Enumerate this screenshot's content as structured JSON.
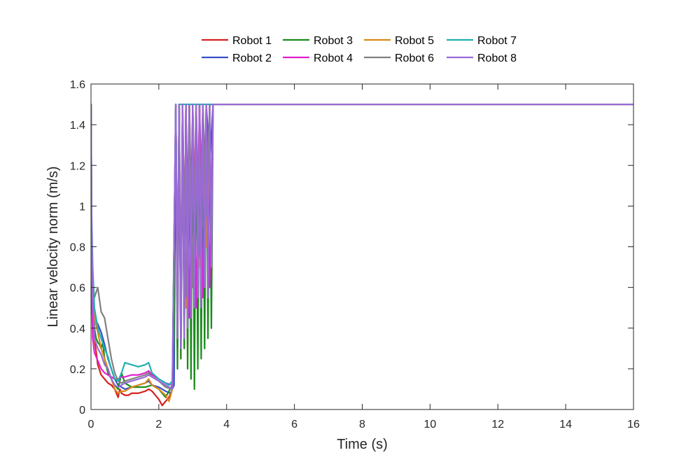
{
  "chart_data": {
    "type": "line",
    "title": "",
    "xlabel": "Time (s)",
    "ylabel": "Linear velocity norm (m/s)",
    "xlim": [
      0,
      16
    ],
    "ylim": [
      0,
      1.6
    ],
    "xticks": [
      0,
      2,
      4,
      6,
      8,
      10,
      12,
      14,
      16
    ],
    "yticks": [
      0,
      0.2,
      0.4,
      0.6,
      0.8,
      1,
      1.2,
      1.4,
      1.6
    ],
    "xtick_labels": [
      "0",
      "2",
      "4",
      "6",
      "8",
      "10",
      "12",
      "14",
      "16"
    ],
    "ytick_labels": [
      "0",
      "0.2",
      "0.4",
      "0.6",
      "0.8",
      "1",
      "1.2",
      "1.4",
      "1.6"
    ],
    "grid": false,
    "legend_placement": "top-center",
    "legend_columns": 4,
    "series": [
      {
        "name": "Robot 1",
        "color": "#d62020",
        "x": [
          0,
          0.02,
          0.05,
          0.1,
          0.2,
          0.3,
          0.4,
          0.5,
          0.6,
          0.7,
          0.8,
          0.85,
          0.9,
          1.0,
          1.1,
          1.2,
          1.4,
          1.6,
          1.7,
          1.8,
          1.9,
          2.0,
          2.1,
          2.2,
          2.3,
          2.4,
          2.45,
          2.5,
          2.55,
          2.6,
          2.65,
          2.7,
          2.75,
          2.8,
          2.85,
          2.9,
          2.95,
          3.0,
          3.05,
          3.1,
          3.15,
          3.2,
          3.25,
          3.3,
          3.35,
          3.4,
          3.45,
          3.5,
          3.6,
          16
        ],
        "y": [
          1.5,
          0.8,
          0.5,
          0.35,
          0.22,
          0.17,
          0.15,
          0.13,
          0.12,
          0.1,
          0.06,
          0.1,
          0.08,
          0.07,
          0.07,
          0.08,
          0.08,
          0.09,
          0.1,
          0.09,
          0.07,
          0.05,
          0.02,
          0.04,
          0.06,
          0.1,
          0.5,
          1.5,
          0.3,
          1.5,
          0.25,
          1.5,
          0.4,
          1.5,
          0.3,
          1.5,
          0.5,
          1.5,
          0.7,
          1.5,
          0.6,
          1.5,
          0.8,
          1.5,
          0.7,
          1.5,
          1.0,
          1.5,
          1.5,
          1.5
        ]
      },
      {
        "name": "Robot 2",
        "color": "#3a50c8",
        "x": [
          0,
          0.02,
          0.05,
          0.1,
          0.2,
          0.3,
          0.4,
          0.5,
          0.6,
          0.7,
          0.8,
          0.9,
          1.0,
          1.2,
          1.4,
          1.6,
          1.7,
          1.8,
          2.0,
          2.2,
          2.35,
          2.45,
          2.5,
          2.55,
          2.6,
          2.65,
          2.7,
          2.75,
          2.8,
          2.85,
          2.9,
          2.95,
          3.0,
          3.05,
          3.1,
          3.15,
          3.2,
          3.3,
          3.4,
          3.5,
          3.6,
          16
        ],
        "y": [
          1.5,
          0.9,
          0.6,
          0.45,
          0.42,
          0.38,
          0.32,
          0.25,
          0.2,
          0.15,
          0.12,
          0.11,
          0.1,
          0.11,
          0.12,
          0.13,
          0.14,
          0.12,
          0.11,
          0.09,
          0.08,
          0.12,
          1.5,
          0.4,
          1.5,
          0.3,
          1.5,
          0.35,
          1.5,
          0.4,
          1.5,
          0.45,
          1.5,
          0.5,
          1.5,
          0.6,
          1.5,
          0.7,
          1.5,
          1.2,
          1.5,
          1.5
        ]
      },
      {
        "name": "Robot 3",
        "color": "#1a8a1a",
        "x": [
          0,
          0.02,
          0.05,
          0.1,
          0.15,
          0.2,
          0.25,
          0.3,
          0.35,
          0.4,
          0.5,
          0.6,
          0.7,
          0.8,
          0.9,
          1.0,
          1.1,
          1.2,
          1.4,
          1.6,
          1.8,
          2.0,
          2.2,
          2.4,
          2.45,
          2.5,
          2.55,
          2.6,
          2.65,
          2.7,
          2.75,
          2.8,
          2.85,
          2.9,
          2.95,
          3.0,
          3.05,
          3.1,
          3.15,
          3.2,
          3.25,
          3.3,
          3.35,
          3.4,
          3.45,
          3.5,
          3.55,
          3.6,
          3.65,
          16
        ],
        "y": [
          1.5,
          0.85,
          0.55,
          0.4,
          0.35,
          0.33,
          0.32,
          0.3,
          0.33,
          0.25,
          0.18,
          0.15,
          0.12,
          0.1,
          0.18,
          0.13,
          0.12,
          0.11,
          0.11,
          0.11,
          0.12,
          0.1,
          0.06,
          0.12,
          0.4,
          1.5,
          0.2,
          1.5,
          0.25,
          1.5,
          0.3,
          1.5,
          0.2,
          1.5,
          0.15,
          1.5,
          0.1,
          1.5,
          0.2,
          1.5,
          0.25,
          1.5,
          0.3,
          1.5,
          0.35,
          1.5,
          0.4,
          1.5,
          1.5,
          1.5
        ]
      },
      {
        "name": "Robot 4",
        "color": "#e020d0",
        "x": [
          0,
          0.02,
          0.05,
          0.1,
          0.2,
          0.3,
          0.4,
          0.5,
          0.6,
          0.7,
          0.8,
          0.9,
          1.0,
          1.2,
          1.4,
          1.6,
          1.7,
          1.8,
          2.0,
          2.2,
          2.4,
          2.5,
          2.55,
          2.6,
          2.65,
          2.7,
          2.75,
          2.8,
          2.9,
          3.0,
          3.1,
          3.2,
          3.3,
          3.4,
          3.5,
          3.6,
          16
        ],
        "y": [
          1.5,
          0.6,
          0.35,
          0.28,
          0.24,
          0.2,
          0.18,
          0.17,
          0.16,
          0.15,
          0.15,
          0.16,
          0.16,
          0.17,
          0.17,
          0.18,
          0.19,
          0.17,
          0.15,
          0.13,
          0.12,
          1.5,
          0.4,
          1.5,
          0.35,
          1.5,
          0.4,
          1.5,
          0.45,
          1.5,
          0.5,
          1.5,
          0.55,
          1.5,
          0.6,
          1.5,
          1.5
        ]
      },
      {
        "name": "Robot 5",
        "color": "#d88a1a",
        "x": [
          0,
          0.02,
          0.05,
          0.1,
          0.2,
          0.3,
          0.4,
          0.5,
          0.6,
          0.7,
          0.8,
          0.9,
          1.0,
          1.2,
          1.4,
          1.6,
          1.7,
          1.8,
          2.0,
          2.2,
          2.3,
          2.4,
          2.5,
          2.55,
          2.6,
          2.65,
          2.7,
          2.8,
          2.9,
          3.0,
          3.1,
          3.2,
          3.3,
          3.4,
          3.5,
          3.6,
          16
        ],
        "y": [
          1.5,
          0.8,
          0.55,
          0.45,
          0.38,
          0.3,
          0.25,
          0.2,
          0.15,
          0.1,
          0.08,
          0.09,
          0.09,
          0.11,
          0.12,
          0.13,
          0.15,
          0.12,
          0.1,
          0.07,
          0.04,
          0.1,
          1.5,
          0.5,
          1.5,
          0.45,
          1.5,
          0.5,
          1.5,
          0.6,
          1.5,
          0.7,
          1.5,
          0.8,
          1.5,
          1.5,
          1.5
        ]
      },
      {
        "name": "Robot 6",
        "color": "#808080",
        "x": [
          0,
          0.02,
          0.05,
          0.1,
          0.2,
          0.3,
          0.4,
          0.5,
          0.6,
          0.7,
          0.8,
          0.9,
          1.0,
          1.2,
          1.4,
          1.6,
          1.7,
          1.8,
          2.0,
          2.2,
          2.4,
          2.5,
          2.55,
          2.6,
          2.65,
          2.7,
          2.8,
          2.9,
          3.0,
          3.1,
          3.2,
          3.3,
          3.4,
          3.5,
          3.6,
          16
        ],
        "y": [
          1.5,
          0.85,
          0.65,
          0.55,
          0.6,
          0.48,
          0.45,
          0.35,
          0.25,
          0.18,
          0.14,
          0.13,
          0.14,
          0.15,
          0.16,
          0.17,
          0.18,
          0.16,
          0.14,
          0.11,
          0.1,
          1.5,
          0.45,
          1.5,
          0.5,
          1.5,
          0.55,
          1.5,
          0.6,
          1.5,
          0.75,
          1.5,
          0.95,
          1.5,
          1.5,
          1.5
        ]
      },
      {
        "name": "Robot 7",
        "color": "#20b0b0",
        "x": [
          0,
          0.02,
          0.05,
          0.1,
          0.2,
          0.3,
          0.4,
          0.5,
          0.6,
          0.7,
          0.8,
          0.9,
          1.0,
          1.2,
          1.4,
          1.6,
          1.7,
          1.8,
          2.0,
          2.2,
          2.3,
          2.4,
          2.5,
          2.55,
          2.6,
          2.7,
          2.8,
          3.0,
          3.5,
          16
        ],
        "y": [
          1.5,
          0.95,
          0.7,
          0.5,
          0.4,
          0.35,
          0.3,
          0.26,
          0.2,
          0.15,
          0.14,
          0.18,
          0.23,
          0.22,
          0.21,
          0.22,
          0.23,
          0.18,
          0.15,
          0.13,
          0.12,
          0.14,
          1.5,
          0.6,
          1.5,
          1.5,
          1.5,
          1.5,
          1.5,
          1.5
        ]
      },
      {
        "name": "Robot 8",
        "color": "#9a6ad8",
        "x": [
          0,
          0.02,
          0.05,
          0.1,
          0.2,
          0.3,
          0.4,
          0.5,
          0.6,
          0.7,
          0.8,
          0.9,
          1.0,
          1.2,
          1.4,
          1.6,
          1.7,
          1.8,
          2.0,
          2.2,
          2.4,
          2.5,
          2.55,
          2.6,
          2.65,
          2.7,
          2.75,
          2.8,
          2.85,
          2.9,
          2.95,
          3.0,
          3.05,
          3.1,
          3.15,
          3.2,
          3.25,
          3.3,
          3.35,
          3.4,
          3.45,
          3.5,
          3.55,
          3.6,
          3.65,
          16
        ],
        "y": [
          1.5,
          0.9,
          0.55,
          0.35,
          0.3,
          0.27,
          0.22,
          0.2,
          0.15,
          0.12,
          0.11,
          0.12,
          0.13,
          0.14,
          0.15,
          0.16,
          0.17,
          0.16,
          0.14,
          0.12,
          0.1,
          1.5,
          0.35,
          1.5,
          0.3,
          1.5,
          0.35,
          1.5,
          0.4,
          1.5,
          0.45,
          1.5,
          0.5,
          1.5,
          0.55,
          1.5,
          0.5,
          1.5,
          0.6,
          1.5,
          0.55,
          1.5,
          0.7,
          1.5,
          1.5,
          1.5
        ]
      }
    ]
  }
}
